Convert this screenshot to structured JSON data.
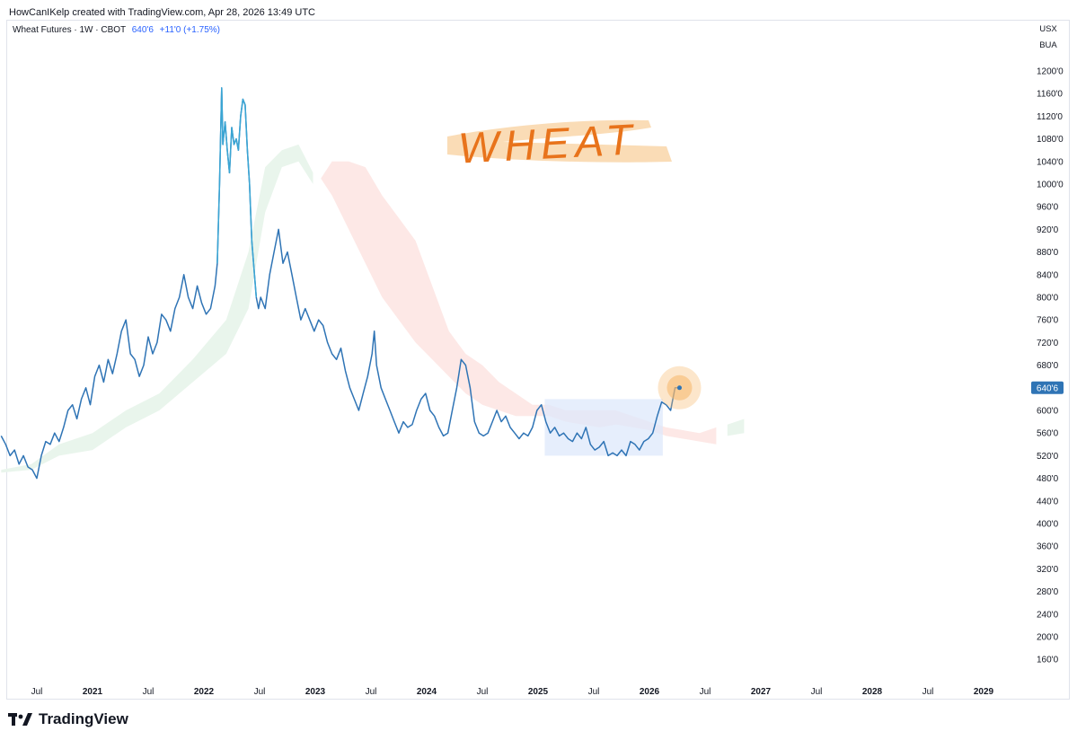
{
  "header": {
    "attribution": "HowCanIKelp created with TradingView.com, Apr 28, 2026 13:49 UTC"
  },
  "legend": {
    "symbol_text": "Wheat Futures · 1W · CBOT",
    "last_price": "640'6",
    "change": "+11'0 (+1.75%)"
  },
  "currency": {
    "unit1": "USX",
    "unit2": "BUA"
  },
  "annotation": {
    "text": "WHEAT"
  },
  "footer": {
    "brand": "TradingView"
  },
  "colors": {
    "line": "#2f74b5",
    "line_peak": "#3aa6d4",
    "cloud_bull": "#e9f5ec",
    "cloud_bear": "#fde8e6",
    "range_box": "#dde8fb",
    "price_tag": "#2f74b5",
    "highlight": "#f5b66a"
  },
  "chart_data": {
    "type": "line",
    "title": "Wheat Futures · 1W · CBOT",
    "last_value_label": "640'6",
    "ylim": [
      140,
      1230
    ],
    "y_ticks": [
      1200,
      1160,
      1120,
      1080,
      1040,
      1000,
      960,
      920,
      880,
      840,
      800,
      760,
      720,
      680,
      640,
      600,
      560,
      520,
      480,
      440,
      400,
      360,
      320,
      280,
      240,
      200,
      160
    ],
    "y_tick_labels": [
      "1200'0",
      "1160'0",
      "1120'0",
      "1080'0",
      "1040'0",
      "1000'0",
      "960'0",
      "920'0",
      "880'0",
      "840'0",
      "800'0",
      "760'0",
      "720'0",
      "680'0",
      "640'0",
      "600'0",
      "560'0",
      "520'0",
      "480'0",
      "440'0",
      "400'0",
      "360'0",
      "320'0",
      "280'0",
      "240'0",
      "200'0",
      "160'0"
    ],
    "x_ticks": [
      {
        "label": "Jul",
        "t": 2020.5,
        "bold": false
      },
      {
        "label": "2021",
        "t": 2021.0,
        "bold": true
      },
      {
        "label": "Jul",
        "t": 2021.5,
        "bold": false
      },
      {
        "label": "2022",
        "t": 2022.0,
        "bold": true
      },
      {
        "label": "Jul",
        "t": 2022.5,
        "bold": false
      },
      {
        "label": "2023",
        "t": 2023.0,
        "bold": true
      },
      {
        "label": "Jul",
        "t": 2023.5,
        "bold": false
      },
      {
        "label": "2024",
        "t": 2024.0,
        "bold": true
      },
      {
        "label": "Jul",
        "t": 2024.5,
        "bold": false
      },
      {
        "label": "2025",
        "t": 2025.0,
        "bold": true
      },
      {
        "label": "Jul",
        "t": 2025.5,
        "bold": false
      },
      {
        "label": "2026",
        "t": 2026.0,
        "bold": true
      },
      {
        "label": "Jul",
        "t": 2026.5,
        "bold": false
      },
      {
        "label": "2027",
        "t": 2027.0,
        "bold": true
      },
      {
        "label": "Jul",
        "t": 2027.5,
        "bold": false
      },
      {
        "label": "2028",
        "t": 2028.0,
        "bold": true
      },
      {
        "label": "Jul",
        "t": 2028.5,
        "bold": false
      },
      {
        "label": "2029",
        "t": 2029.0,
        "bold": true
      }
    ],
    "series": [
      {
        "values": [
          [
            2020.18,
            555
          ],
          [
            2020.22,
            540
          ],
          [
            2020.26,
            520
          ],
          [
            2020.3,
            530
          ],
          [
            2020.34,
            505
          ],
          [
            2020.38,
            520
          ],
          [
            2020.42,
            500
          ],
          [
            2020.46,
            495
          ],
          [
            2020.5,
            480
          ],
          [
            2020.54,
            520
          ],
          [
            2020.58,
            545
          ],
          [
            2020.62,
            540
          ],
          [
            2020.66,
            560
          ],
          [
            2020.7,
            545
          ],
          [
            2020.74,
            570
          ],
          [
            2020.78,
            600
          ],
          [
            2020.82,
            610
          ],
          [
            2020.86,
            585
          ],
          [
            2020.9,
            620
          ],
          [
            2020.94,
            640
          ],
          [
            2020.98,
            610
          ],
          [
            2021.02,
            660
          ],
          [
            2021.06,
            680
          ],
          [
            2021.1,
            650
          ],
          [
            2021.14,
            690
          ],
          [
            2021.18,
            665
          ],
          [
            2021.22,
            700
          ],
          [
            2021.26,
            740
          ],
          [
            2021.3,
            760
          ],
          [
            2021.34,
            700
          ],
          [
            2021.38,
            690
          ],
          [
            2021.42,
            660
          ],
          [
            2021.46,
            680
          ],
          [
            2021.5,
            730
          ],
          [
            2021.54,
            700
          ],
          [
            2021.58,
            720
          ],
          [
            2021.62,
            770
          ],
          [
            2021.66,
            760
          ],
          [
            2021.7,
            740
          ],
          [
            2021.74,
            780
          ],
          [
            2021.78,
            800
          ],
          [
            2021.82,
            840
          ],
          [
            2021.86,
            800
          ],
          [
            2021.9,
            780
          ],
          [
            2021.94,
            820
          ],
          [
            2021.98,
            790
          ],
          [
            2022.02,
            770
          ],
          [
            2022.06,
            780
          ],
          [
            2022.1,
            820
          ],
          [
            2022.12,
            860
          ],
          [
            2022.14,
            1000
          ],
          [
            2022.16,
            1170
          ],
          [
            2022.17,
            1070
          ],
          [
            2022.19,
            1110
          ],
          [
            2022.21,
            1060
          ],
          [
            2022.23,
            1020
          ],
          [
            2022.25,
            1100
          ],
          [
            2022.27,
            1070
          ],
          [
            2022.29,
            1080
          ],
          [
            2022.31,
            1060
          ],
          [
            2022.33,
            1120
          ],
          [
            2022.35,
            1150
          ],
          [
            2022.37,
            1140
          ],
          [
            2022.39,
            1060
          ],
          [
            2022.41,
            1000
          ],
          [
            2022.43,
            900
          ],
          [
            2022.45,
            850
          ],
          [
            2022.47,
            800
          ],
          [
            2022.49,
            780
          ],
          [
            2022.51,
            800
          ],
          [
            2022.55,
            780
          ],
          [
            2022.59,
            840
          ],
          [
            2022.63,
            880
          ],
          [
            2022.67,
            920
          ],
          [
            2022.71,
            860
          ],
          [
            2022.75,
            880
          ],
          [
            2022.79,
            840
          ],
          [
            2022.83,
            800
          ],
          [
            2022.87,
            760
          ],
          [
            2022.91,
            780
          ],
          [
            2022.95,
            760
          ],
          [
            2022.99,
            740
          ],
          [
            2023.03,
            760
          ],
          [
            2023.07,
            750
          ],
          [
            2023.11,
            720
          ],
          [
            2023.15,
            700
          ],
          [
            2023.19,
            690
          ],
          [
            2023.23,
            710
          ],
          [
            2023.27,
            670
          ],
          [
            2023.31,
            640
          ],
          [
            2023.35,
            620
          ],
          [
            2023.39,
            600
          ],
          [
            2023.43,
            630
          ],
          [
            2023.47,
            660
          ],
          [
            2023.51,
            700
          ],
          [
            2023.53,
            740
          ],
          [
            2023.55,
            680
          ],
          [
            2023.59,
            640
          ],
          [
            2023.63,
            620
          ],
          [
            2023.67,
            600
          ],
          [
            2023.71,
            580
          ],
          [
            2023.75,
            560
          ],
          [
            2023.79,
            580
          ],
          [
            2023.83,
            570
          ],
          [
            2023.87,
            575
          ],
          [
            2023.91,
            600
          ],
          [
            2023.95,
            620
          ],
          [
            2023.99,
            630
          ],
          [
            2024.03,
            600
          ],
          [
            2024.07,
            590
          ],
          [
            2024.11,
            570
          ],
          [
            2024.15,
            555
          ],
          [
            2024.19,
            560
          ],
          [
            2024.23,
            600
          ],
          [
            2024.27,
            640
          ],
          [
            2024.31,
            690
          ],
          [
            2024.35,
            680
          ],
          [
            2024.39,
            640
          ],
          [
            2024.43,
            580
          ],
          [
            2024.47,
            560
          ],
          [
            2024.51,
            555
          ],
          [
            2024.55,
            560
          ],
          [
            2024.59,
            580
          ],
          [
            2024.63,
            600
          ],
          [
            2024.67,
            580
          ],
          [
            2024.71,
            590
          ],
          [
            2024.75,
            570
          ],
          [
            2024.79,
            560
          ],
          [
            2024.83,
            550
          ],
          [
            2024.87,
            560
          ],
          [
            2024.91,
            555
          ],
          [
            2024.95,
            570
          ],
          [
            2024.99,
            600
          ],
          [
            2025.03,
            610
          ],
          [
            2025.07,
            580
          ],
          [
            2025.11,
            560
          ],
          [
            2025.15,
            570
          ],
          [
            2025.19,
            555
          ],
          [
            2025.23,
            560
          ],
          [
            2025.27,
            550
          ],
          [
            2025.31,
            545
          ],
          [
            2025.35,
            560
          ],
          [
            2025.39,
            550
          ],
          [
            2025.43,
            570
          ],
          [
            2025.47,
            540
          ],
          [
            2025.51,
            530
          ],
          [
            2025.55,
            535
          ],
          [
            2025.59,
            545
          ],
          [
            2025.63,
            520
          ],
          [
            2025.67,
            525
          ],
          [
            2025.71,
            520
          ],
          [
            2025.75,
            530
          ],
          [
            2025.79,
            520
          ],
          [
            2025.83,
            545
          ],
          [
            2025.87,
            540
          ],
          [
            2025.91,
            530
          ],
          [
            2025.95,
            545
          ],
          [
            2025.99,
            550
          ],
          [
            2026.03,
            560
          ],
          [
            2026.07,
            590
          ],
          [
            2026.11,
            615
          ],
          [
            2026.15,
            610
          ],
          [
            2026.19,
            600
          ],
          [
            2026.23,
            640
          ],
          [
            2026.27,
            640
          ]
        ]
      }
    ],
    "ichimoku_cloud": {
      "bullish": [
        [
          2020.18,
          490,
          495
        ],
        [
          2020.45,
          495,
          505
        ],
        [
          2020.7,
          520,
          540
        ],
        [
          2021.0,
          530,
          560
        ],
        [
          2021.3,
          570,
          600
        ],
        [
          2021.6,
          600,
          630
        ],
        [
          2021.9,
          650,
          690
        ],
        [
          2022.2,
          700,
          760
        ],
        [
          2022.4,
          780,
          880
        ],
        [
          2022.55,
          950,
          1030
        ],
        [
          2022.7,
          1030,
          1060
        ],
        [
          2022.85,
          1040,
          1070
        ],
        [
          2022.98,
          1000,
          1020
        ]
      ],
      "bearish": [
        [
          2023.05,
          1010,
          1010
        ],
        [
          2023.15,
          980,
          1040
        ],
        [
          2023.3,
          920,
          1040
        ],
        [
          2023.45,
          860,
          1030
        ],
        [
          2023.6,
          800,
          980
        ],
        [
          2023.75,
          760,
          940
        ],
        [
          2023.9,
          720,
          900
        ],
        [
          2024.05,
          690,
          820
        ],
        [
          2024.2,
          660,
          740
        ],
        [
          2024.35,
          630,
          700
        ],
        [
          2024.5,
          610,
          680
        ],
        [
          2024.65,
          600,
          650
        ],
        [
          2024.8,
          590,
          630
        ],
        [
          2024.95,
          590,
          610
        ],
        [
          2025.1,
          590,
          610
        ],
        [
          2025.25,
          580,
          600
        ],
        [
          2025.4,
          575,
          600
        ],
        [
          2025.55,
          570,
          600
        ],
        [
          2025.7,
          575,
          600
        ],
        [
          2025.85,
          570,
          590
        ],
        [
          2026.0,
          565,
          580
        ],
        [
          2026.15,
          555,
          570
        ],
        [
          2026.3,
          550,
          565
        ],
        [
          2026.45,
          545,
          560
        ],
        [
          2026.6,
          540,
          570
        ]
      ],
      "bullish_tail": [
        [
          2026.7,
          555,
          575
        ],
        [
          2026.85,
          560,
          585
        ]
      ]
    },
    "range_box": {
      "x0": 2025.06,
      "x1": 2026.12,
      "y0": 520,
      "y1": 620
    }
  }
}
